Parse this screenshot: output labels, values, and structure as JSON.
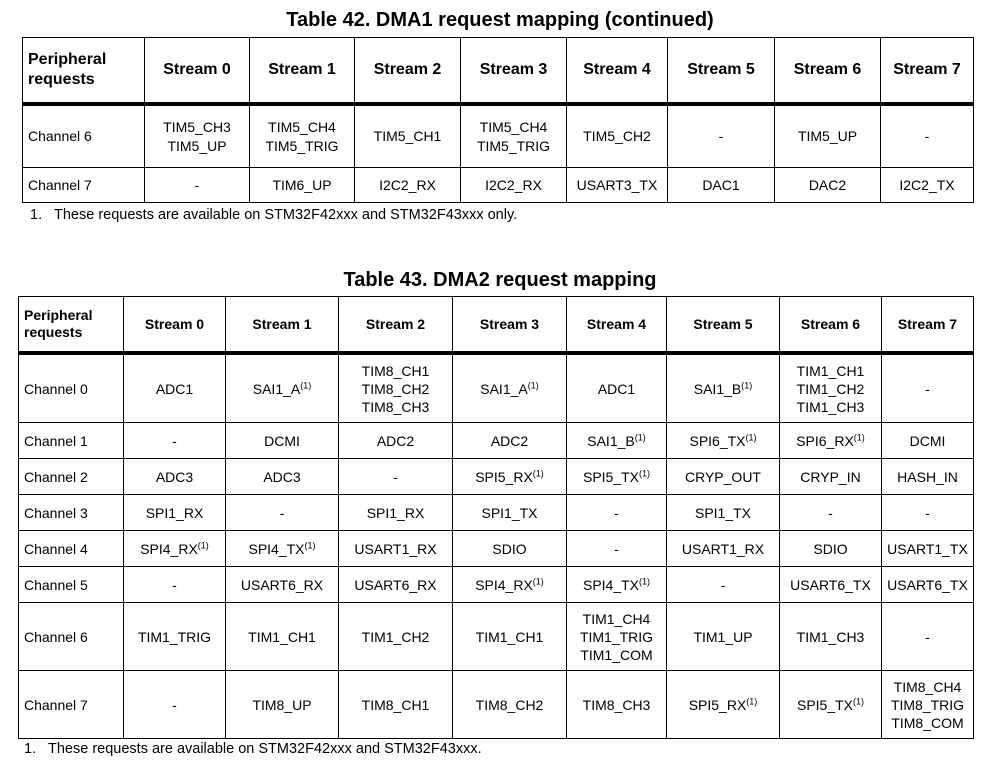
{
  "table42": {
    "title": "Table 42. DMA1 request mapping (continued)",
    "headers": [
      "Peripheral requests",
      "Stream 0",
      "Stream 1",
      "Stream 2",
      "Stream 3",
      "Stream 4",
      "Stream 5",
      "Stream 6",
      "Stream 7"
    ],
    "rows": [
      {
        "label": "Channel 6",
        "cells": [
          [
            "TIM5_CH3",
            "TIM5_UP"
          ],
          [
            "TIM5_CH4",
            "TIM5_TRIG"
          ],
          [
            "TIM5_CH1"
          ],
          [
            "TIM5_CH4",
            "TIM5_TRIG"
          ],
          [
            "TIM5_CH2"
          ],
          [
            "-"
          ],
          [
            "TIM5_UP"
          ],
          [
            "-"
          ]
        ]
      },
      {
        "label": "Channel 7",
        "cells": [
          [
            "-"
          ],
          [
            "TIM6_UP"
          ],
          [
            "I2C2_RX"
          ],
          [
            "I2C2_RX"
          ],
          [
            "USART3_TX"
          ],
          [
            "DAC1"
          ],
          [
            "DAC2"
          ],
          [
            "I2C2_TX"
          ]
        ]
      }
    ],
    "footnote_number": "1.",
    "footnote": "These requests are available on STM32F42xxx and STM32F43xxx only."
  },
  "table43": {
    "title": "Table 43. DMA2 request mapping",
    "headers": [
      "Peripheral requests",
      "Stream 0",
      "Stream 1",
      "Stream 2",
      "Stream 3",
      "Stream 4",
      "Stream 5",
      "Stream 6",
      "Stream 7"
    ],
    "footnote_marker": "(1)",
    "rows": [
      {
        "label": "Channel 0",
        "cells": [
          [
            "ADC1"
          ],
          [
            "SAI1_A*"
          ],
          [
            "TIM8_CH1",
            "TIM8_CH2",
            "TIM8_CH3"
          ],
          [
            "SAI1_A*"
          ],
          [
            "ADC1"
          ],
          [
            "SAI1_B*"
          ],
          [
            "TIM1_CH1",
            "TIM1_CH2",
            "TIM1_CH3"
          ],
          [
            "-"
          ]
        ]
      },
      {
        "label": "Channel 1",
        "cells": [
          [
            "-"
          ],
          [
            "DCMI"
          ],
          [
            "ADC2"
          ],
          [
            "ADC2"
          ],
          [
            "SAI1_B*"
          ],
          [
            "SPI6_TX*"
          ],
          [
            "SPI6_RX*"
          ],
          [
            "DCMI"
          ]
        ]
      },
      {
        "label": "Channel 2",
        "cells": [
          [
            "ADC3"
          ],
          [
            "ADC3"
          ],
          [
            "-"
          ],
          [
            "SPI5_RX*"
          ],
          [
            "SPI5_TX*"
          ],
          [
            "CRYP_OUT"
          ],
          [
            "CRYP_IN"
          ],
          [
            "HASH_IN"
          ]
        ]
      },
      {
        "label": "Channel 3",
        "cells": [
          [
            "SPI1_RX"
          ],
          [
            "-"
          ],
          [
            "SPI1_RX"
          ],
          [
            "SPI1_TX"
          ],
          [
            "-"
          ],
          [
            "SPI1_TX"
          ],
          [
            "-"
          ],
          [
            "-"
          ]
        ]
      },
      {
        "label": "Channel 4",
        "cells": [
          [
            "SPI4_RX*"
          ],
          [
            "SPI4_TX*"
          ],
          [
            "USART1_RX"
          ],
          [
            "SDIO"
          ],
          [
            "-"
          ],
          [
            "USART1_RX"
          ],
          [
            "SDIO"
          ],
          [
            "USART1_TX"
          ]
        ]
      },
      {
        "label": "Channel 5",
        "cells": [
          [
            "-"
          ],
          [
            "USART6_RX"
          ],
          [
            "USART6_RX"
          ],
          [
            "SPI4_RX*"
          ],
          [
            "SPI4_TX*"
          ],
          [
            "-"
          ],
          [
            "USART6_TX"
          ],
          [
            "USART6_TX"
          ]
        ]
      },
      {
        "label": "Channel 6",
        "cells": [
          [
            "TIM1_TRIG"
          ],
          [
            "TIM1_CH1"
          ],
          [
            "TIM1_CH2"
          ],
          [
            "TIM1_CH1"
          ],
          [
            "TIM1_CH4",
            "TIM1_TRIG",
            "TIM1_COM"
          ],
          [
            "TIM1_UP"
          ],
          [
            "TIM1_CH3"
          ],
          [
            "-"
          ]
        ]
      },
      {
        "label": "Channel 7",
        "cells": [
          [
            "-"
          ],
          [
            "TIM8_UP"
          ],
          [
            "TIM8_CH1"
          ],
          [
            "TIM8_CH2"
          ],
          [
            "TIM8_CH3"
          ],
          [
            "SPI5_RX*"
          ],
          [
            "SPI5_TX*"
          ],
          [
            "TIM8_CH4",
            "TIM8_TRIG",
            "TIM8_COM"
          ]
        ]
      }
    ],
    "footnote_number": "1.",
    "footnote": "These requests are available on STM32F42xxx and STM32F43xxx."
  }
}
